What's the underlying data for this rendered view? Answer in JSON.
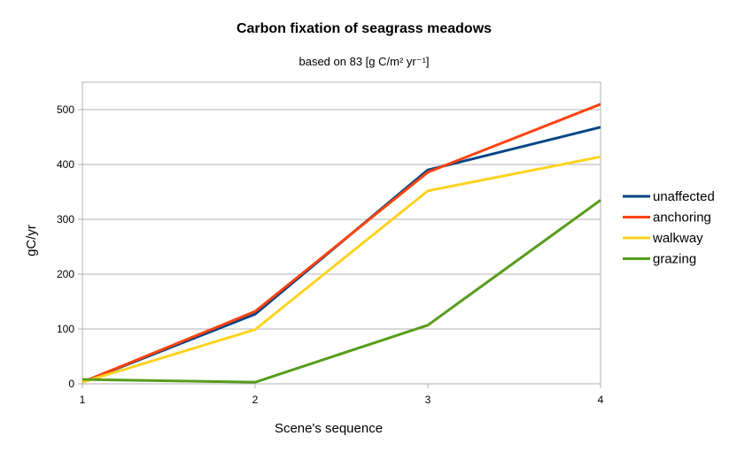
{
  "chart_data": {
    "type": "line",
    "title": "Carbon fixation of seagrass meadows",
    "subtitle": "based on 83 [g C/m² yr⁻¹]",
    "xlabel": "Scene's sequence",
    "ylabel": "gC/yr",
    "x": [
      1,
      2,
      3,
      4
    ],
    "x_tick_labels": [
      "1",
      "2",
      "3",
      "4"
    ],
    "ylim": [
      0,
      550
    ],
    "y_ticks": [
      0,
      100,
      200,
      300,
      400,
      500
    ],
    "y_tick_labels": [
      "0",
      "100",
      "200",
      "300",
      "400",
      "500"
    ],
    "grid": "horizontal",
    "legend_position": "right",
    "series": [
      {
        "name": "unaffected",
        "color": "#004586",
        "values": [
          3,
          127,
          390,
          468
        ]
      },
      {
        "name": "anchoring",
        "color": "#ff420e",
        "values": [
          3,
          132,
          386,
          510
        ]
      },
      {
        "name": "walkway",
        "color": "#ffd320",
        "values": [
          3,
          99,
          352,
          414
        ]
      },
      {
        "name": "grazing",
        "color": "#579d1c",
        "values": [
          8,
          3,
          107,
          335
        ]
      }
    ]
  }
}
